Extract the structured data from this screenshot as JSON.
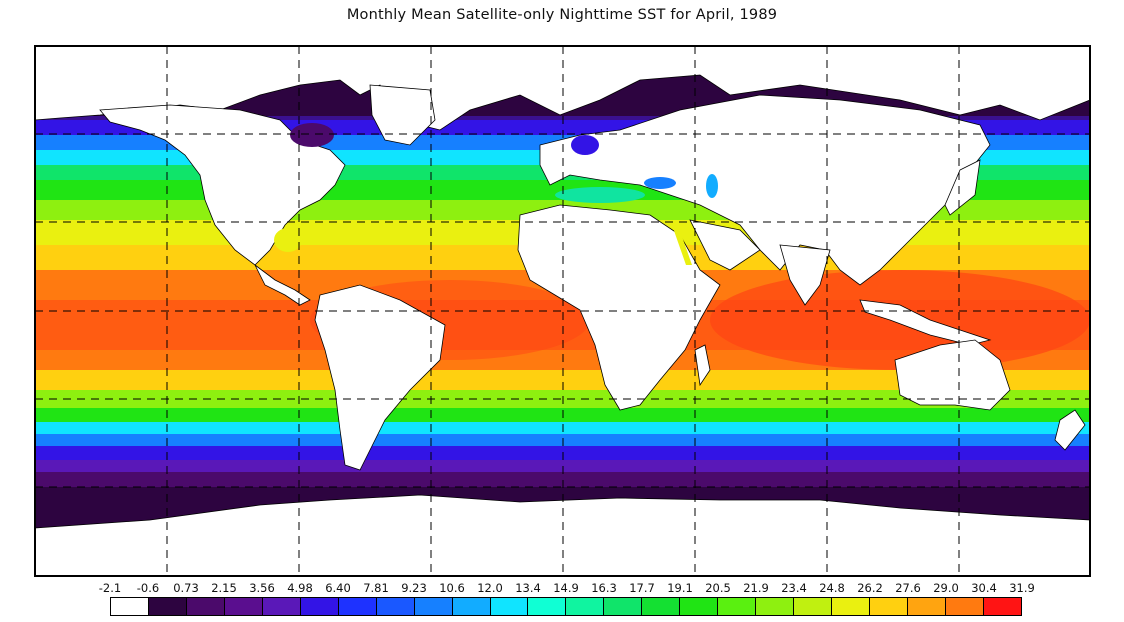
{
  "title": "Monthly Mean Satellite-only Nighttime SST for April, 1989",
  "colorbar": {
    "tick_labels": [
      "-2.1",
      "-0.6",
      "0.73",
      "2.15",
      "3.56",
      "4.98",
      "6.40",
      "7.81",
      "9.23",
      "10.6",
      "12.0",
      "13.4",
      "14.9",
      "16.3",
      "17.7",
      "19.1",
      "20.5",
      "21.9",
      "23.4",
      "24.8",
      "26.2",
      "27.6",
      "29.0",
      "30.4",
      "31.9"
    ],
    "colors": [
      "#ffffff",
      "#2d0440",
      "#4b0a6b",
      "#5a0e8f",
      "#5a18b8",
      "#3314e6",
      "#1e32ff",
      "#1a58ff",
      "#1680ff",
      "#12acff",
      "#10e4ff",
      "#10ffd4",
      "#10f4a0",
      "#10e46a",
      "#14e032",
      "#20e414",
      "#5af010",
      "#8ef010",
      "#c0f010",
      "#eaf010",
      "#ffd010",
      "#ffa410",
      "#ff7a10",
      "#ff4414",
      "#ff1414"
    ]
  },
  "map": {
    "projection": "equirectangular",
    "grid": "dashed",
    "land_color": "#ffffff",
    "coast_color": "#000000"
  }
}
